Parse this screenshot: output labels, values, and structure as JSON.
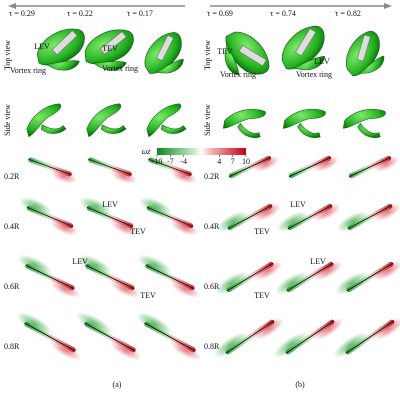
{
  "panel_a": {
    "label": "(a)",
    "tau": [
      "τ = 0.29",
      "τ = 0.22",
      "τ = 0.17"
    ],
    "view_labels": [
      "Top view",
      "Side view"
    ],
    "top_view_annotations": [
      "LEV",
      "TEV",
      "Vortex ring",
      "Vortex ring"
    ],
    "slice_annotations": [
      "LEV",
      "TEV",
      "LEV",
      "TEV"
    ],
    "row_labels": [
      "0.2R",
      "0.4R",
      "0.6R",
      "0.8R"
    ]
  },
  "panel_b": {
    "label": "(b)",
    "tau": [
      "τ = 0.69",
      "τ = 0.74",
      "τ = 0.82"
    ],
    "view_labels": [
      "Top view",
      "Side view"
    ],
    "top_view_annotations": [
      "TEV",
      "LEV",
      "Vortex ring",
      "Vortex ring"
    ],
    "slice_annotations": [
      "LEV",
      "TEV",
      "LEV",
      "TEV"
    ],
    "row_labels": [
      "0.2R",
      "0.4R",
      "0.6R",
      "0.8R"
    ]
  },
  "colorbar": {
    "title": "ωz",
    "ticks": [
      -10,
      -7,
      -4,
      4,
      7,
      10
    ]
  }
}
